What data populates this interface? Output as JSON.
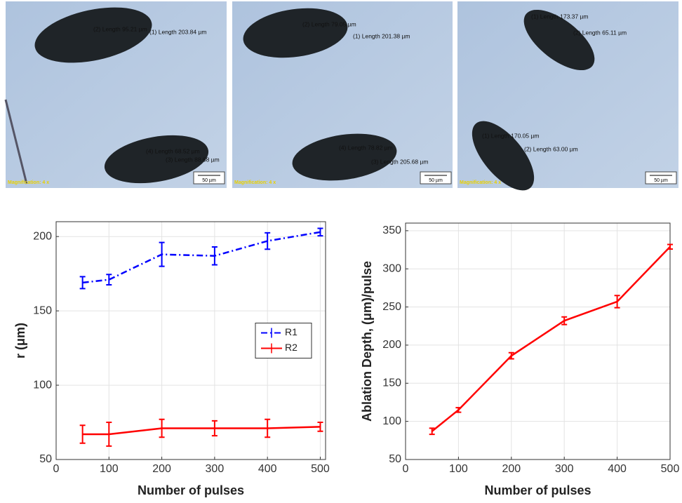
{
  "micrographs": [
    {
      "labels": [
        "(2) Length 95.21 µm",
        "(1) Length 203.84 µm",
        "(4) Length 68.52 µm",
        "(3) Length 88.68 µm"
      ],
      "scale_bar": "50 µm",
      "magnification": "Magnification: 4 x"
    },
    {
      "labels": [
        "(2) Length 79.05 µm",
        "(1) Length 201.38 µm",
        "(4) Length 78.82 µm",
        "(3) Length 205.68 µm"
      ],
      "scale_bar": "50 µm",
      "magnification": "Magnification: 4 x"
    },
    {
      "labels": [
        "(1) Length 173.37 µm",
        "(2) Length 65.11 µm",
        "(1) Length 170.05 µm",
        "(2) Length 63.00 µm"
      ],
      "scale_bar": "50 µm",
      "magnification": "Magnification: 4 x"
    }
  ],
  "chart_data": [
    {
      "type": "line",
      "x_label": "Number of pulses",
      "y_label": "r (μm)",
      "x": [
        50,
        100,
        200,
        300,
        400,
        500
      ],
      "series": [
        {
          "name": "R1",
          "color": "#0000ff",
          "line_style": "dashdot",
          "values": [
            169,
            171,
            188,
            187,
            197,
            203
          ],
          "errors": [
            4,
            3.5,
            8,
            6,
            5.5,
            2.5
          ]
        },
        {
          "name": "R2",
          "color": "#ff0000",
          "line_style": "solid",
          "values": [
            67,
            67,
            71,
            71,
            71,
            72
          ],
          "errors": [
            6,
            8,
            6,
            5,
            6,
            3
          ]
        }
      ],
      "xlim": [
        0,
        510
      ],
      "xticks": [
        0,
        100,
        200,
        300,
        400,
        500
      ],
      "ylim": [
        50,
        210
      ],
      "yticks": [
        50,
        100,
        150,
        200
      ],
      "grid": true,
      "legend": "center right"
    },
    {
      "type": "line",
      "x_label": "Number of pulses",
      "y_label": "Ablation Depth, (μm)/pulse",
      "x": [
        50,
        100,
        200,
        300,
        400,
        500
      ],
      "series": [
        {
          "color": "#ff0000",
          "line_style": "solid",
          "values": [
            87,
            115,
            186,
            232,
            257,
            329
          ],
          "errors": [
            4,
            3,
            4,
            5,
            8,
            3
          ]
        }
      ],
      "xlim": [
        0,
        500
      ],
      "xticks": [
        0,
        100,
        200,
        300,
        400,
        500
      ],
      "ylim": [
        50,
        360
      ],
      "yticks": [
        50,
        100,
        150,
        200,
        250,
        300,
        350
      ],
      "grid": true
    }
  ]
}
